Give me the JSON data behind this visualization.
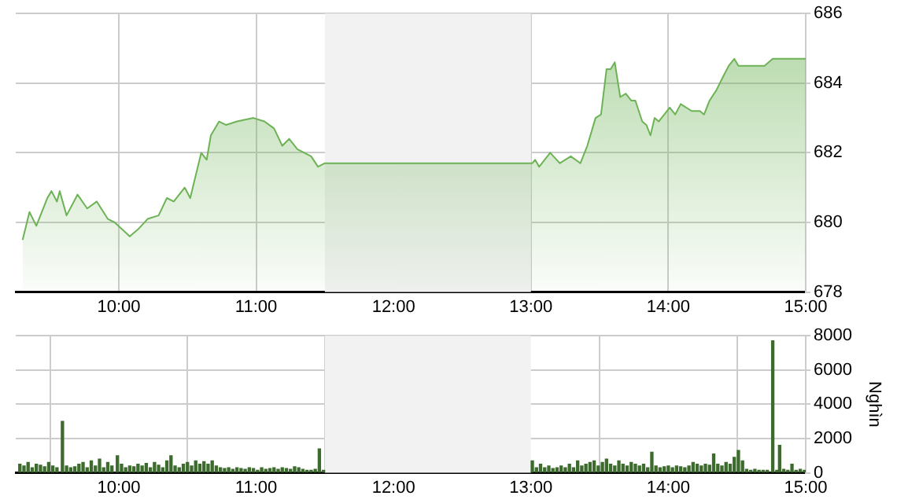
{
  "chart_data": [
    {
      "type": "area",
      "xlim": [
        9.25,
        15
      ],
      "xticks": [
        {
          "value": 10,
          "label": "10:00"
        },
        {
          "value": 11,
          "label": "11:00"
        },
        {
          "value": 12,
          "label": "12:00"
        },
        {
          "value": 13,
          "label": "13:00"
        },
        {
          "value": 14,
          "label": "14:00"
        },
        {
          "value": 15,
          "label": "15:00"
        }
      ],
      "ylim": [
        678,
        686
      ],
      "yticks": [
        678,
        680,
        682,
        684,
        686
      ],
      "grid": true,
      "bands": [
        {
          "axis": "x",
          "from": 11.5,
          "to": 13,
          "color": "#f2f2f2"
        }
      ],
      "series": [
        {
          "color": "#6db356",
          "x": [
            9.3,
            9.35,
            9.4,
            9.48,
            9.51,
            9.55,
            9.57,
            9.62,
            9.7,
            9.77,
            9.84,
            9.92,
            9.97,
            10.08,
            10.14,
            10.21,
            10.29,
            10.35,
            10.4,
            10.48,
            10.52,
            10.6,
            10.64,
            10.67,
            10.73,
            10.78,
            10.86,
            10.98,
            11.06,
            11.13,
            11.19,
            11.24,
            11.3,
            11.4,
            11.45,
            11.5,
            13.01,
            13.03,
            13.06,
            13.14,
            13.21,
            13.29,
            13.36,
            13.41,
            13.47,
            13.51,
            13.55,
            13.58,
            13.61,
            13.65,
            13.69,
            13.73,
            13.76,
            13.81,
            13.84,
            13.87,
            13.9,
            13.93,
            14.01,
            14.05,
            14.09,
            14.17,
            14.23,
            14.26,
            14.3,
            14.35,
            14.4,
            14.44,
            14.48,
            14.51,
            14.7,
            14.76,
            15.0
          ],
          "values": [
            679.5,
            680.3,
            679.9,
            680.7,
            680.9,
            680.6,
            680.9,
            680.2,
            680.8,
            680.4,
            680.6,
            680.1,
            680.0,
            679.6,
            679.8,
            680.1,
            680.2,
            680.7,
            680.6,
            681.0,
            680.7,
            682.0,
            681.8,
            682.5,
            682.9,
            682.8,
            682.9,
            683.0,
            682.9,
            682.7,
            682.2,
            682.4,
            682.1,
            681.9,
            681.6,
            681.7,
            681.7,
            681.8,
            681.6,
            682.0,
            681.7,
            681.9,
            681.7,
            682.2,
            683.0,
            683.1,
            684.4,
            684.4,
            684.6,
            683.6,
            683.7,
            683.5,
            683.5,
            682.9,
            682.8,
            682.5,
            683.0,
            682.9,
            683.3,
            683.1,
            683.4,
            683.2,
            683.2,
            683.1,
            683.5,
            683.8,
            684.2,
            684.5,
            684.7,
            684.5,
            684.5,
            684.7,
            684.7
          ]
        }
      ]
    },
    {
      "type": "bar",
      "ylabel": "Nghìn",
      "xlim": [
        9.25,
        15
      ],
      "xticks": [
        {
          "value": 10,
          "label": "10:00"
        },
        {
          "value": 11,
          "label": "11:00"
        },
        {
          "value": 12,
          "label": "12:00"
        },
        {
          "value": 13,
          "label": "13:00"
        },
        {
          "value": 14,
          "label": "14:00"
        },
        {
          "value": 15,
          "label": "15:00"
        }
      ],
      "ylim": [
        0,
        8000
      ],
      "yticks": [
        0,
        2000,
        4000,
        6000,
        8000
      ],
      "grid": true,
      "bands": [
        {
          "axis": "x",
          "from": 11.5,
          "to": 13,
          "color": "#f2f2f2"
        }
      ],
      "series": [
        {
          "color": "#3d6b2e",
          "x": [
            9.28,
            9.31,
            9.34,
            9.37,
            9.4,
            9.43,
            9.46,
            9.49,
            9.52,
            9.55,
            9.59,
            9.62,
            9.65,
            9.68,
            9.71,
            9.74,
            9.77,
            9.8,
            9.83,
            9.86,
            9.89,
            9.92,
            9.95,
            9.99,
            10.02,
            10.05,
            10.08,
            10.11,
            10.14,
            10.17,
            10.2,
            10.23,
            10.26,
            10.29,
            10.32,
            10.35,
            10.38,
            10.41,
            10.44,
            10.47,
            10.5,
            10.53,
            10.56,
            10.59,
            10.62,
            10.65,
            10.68,
            10.71,
            10.74,
            10.77,
            10.8,
            10.83,
            10.86,
            10.89,
            10.92,
            10.95,
            10.98,
            11.01,
            11.04,
            11.07,
            11.1,
            11.13,
            11.16,
            11.19,
            11.22,
            11.25,
            11.28,
            11.31,
            11.34,
            11.37,
            11.4,
            11.43,
            11.46,
            11.49,
            13.01,
            13.04,
            13.07,
            13.1,
            13.13,
            13.16,
            13.19,
            13.22,
            13.25,
            13.28,
            13.31,
            13.34,
            13.37,
            13.4,
            13.43,
            13.46,
            13.49,
            13.52,
            13.55,
            13.58,
            13.61,
            13.64,
            13.67,
            13.7,
            13.73,
            13.76,
            13.79,
            13.82,
            13.85,
            13.88,
            13.91,
            13.94,
            13.97,
            14.0,
            14.03,
            14.06,
            14.09,
            14.12,
            14.15,
            14.18,
            14.21,
            14.24,
            14.27,
            14.3,
            14.33,
            14.36,
            14.39,
            14.42,
            14.45,
            14.48,
            14.51,
            14.54,
            14.57,
            14.6,
            14.63,
            14.66,
            14.69,
            14.72,
            14.76,
            14.79,
            14.81,
            14.84,
            14.87,
            14.9,
            14.93,
            14.96,
            14.99
          ],
          "values": [
            500,
            400,
            600,
            300,
            500,
            450,
            350,
            600,
            400,
            300,
            3000,
            400,
            300,
            350,
            500,
            600,
            300,
            700,
            400,
            800,
            300,
            600,
            400,
            1000,
            500,
            300,
            400,
            350,
            500,
            400,
            550,
            300,
            600,
            450,
            300,
            700,
            1000,
            400,
            300,
            500,
            600,
            400,
            700,
            500,
            650,
            500,
            700,
            400,
            300,
            250,
            300,
            200,
            300,
            250,
            200,
            300,
            250,
            150,
            300,
            200,
            250,
            300,
            200,
            300,
            250,
            200,
            350,
            300,
            200,
            150,
            150,
            200,
            1400,
            150,
            700,
            300,
            500,
            300,
            400,
            250,
            300,
            400,
            300,
            500,
            300,
            700,
            400,
            500,
            600,
            700,
            400,
            600,
            800,
            500,
            400,
            700,
            500,
            400,
            600,
            500,
            400,
            500,
            300,
            1200,
            400,
            300,
            350,
            400,
            300,
            400,
            350,
            300,
            400,
            600,
            500,
            400,
            500,
            450,
            1100,
            500,
            400,
            600,
            500,
            900,
            1300,
            700,
            200,
            150,
            200,
            150,
            150,
            150,
            7700,
            150,
            1600,
            200,
            150,
            500,
            150,
            200,
            150
          ]
        }
      ]
    }
  ]
}
